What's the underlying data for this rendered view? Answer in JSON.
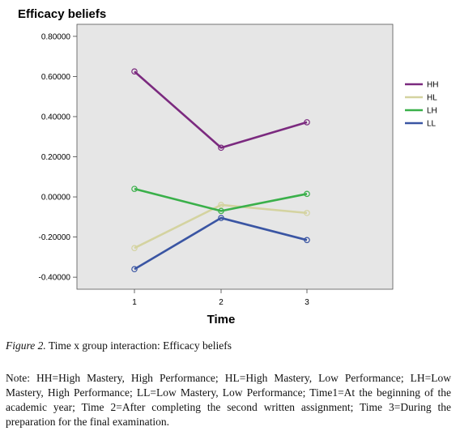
{
  "chart_data": {
    "type": "line",
    "title": "Efficacy beliefs",
    "xlabel": "Time",
    "ylabel": "",
    "x": [
      "1",
      "2",
      "3"
    ],
    "ylim": [
      -0.46,
      0.86
    ],
    "yticks": [
      "0.80000",
      "0.60000",
      "0.40000",
      "0.20000",
      "0.00000",
      "-0.20000",
      "-0.40000"
    ],
    "ytick_values": [
      0.8,
      0.6,
      0.4,
      0.2,
      0.0,
      -0.2,
      -0.4
    ],
    "grid": false,
    "legend_position": "right",
    "background_color": "#e6e6e6",
    "series": [
      {
        "name": "HH",
        "color": "#7b2a7f",
        "values": [
          0.625,
          0.245,
          0.372
        ]
      },
      {
        "name": "HL",
        "color": "#d4d3a0",
        "values": [
          -0.255,
          -0.04,
          -0.08
        ]
      },
      {
        "name": "LH",
        "color": "#3ab04a",
        "values": [
          0.04,
          -0.07,
          0.015
        ]
      },
      {
        "name": "LL",
        "color": "#3a55a3",
        "values": [
          -0.36,
          -0.105,
          -0.215
        ]
      }
    ]
  },
  "caption": {
    "label": "Figure 2.",
    "text": " Time x group interaction: Efficacy beliefs"
  },
  "note": "Note: HH=High Mastery, High Performance; HL=High Mastery, Low Performance; LH=Low Mastery, High Performance; LL=Low Mastery, Low Performance; Time1=At the beginning of the academic year; Time 2=After completing the second written assignment; Time 3=During the preparation for the final examination."
}
